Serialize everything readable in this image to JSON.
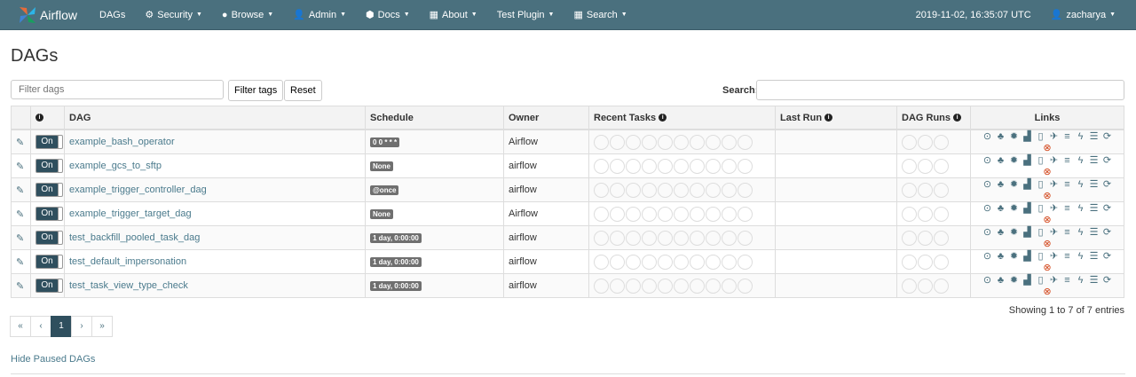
{
  "nav": {
    "brand": "Airflow",
    "items": [
      {
        "label": "DAGs",
        "icon": ""
      },
      {
        "label": "Security",
        "icon": "cogs-icon"
      },
      {
        "label": "Browse",
        "icon": "globe-icon"
      },
      {
        "label": "Admin",
        "icon": "user-icon"
      },
      {
        "label": "Docs",
        "icon": "cube-icon"
      },
      {
        "label": "About",
        "icon": "grid-icon"
      },
      {
        "label": "Test Plugin",
        "icon": ""
      },
      {
        "label": "Search",
        "icon": "grid-icon"
      }
    ],
    "time": "2019-11-02, 16:35:07 UTC",
    "user": "zacharya",
    "color": "#4a707e"
  },
  "page": {
    "title": "DAGs",
    "filter_placeholder": "Filter dags",
    "filter_tags": "Filter tags",
    "reset": "Reset",
    "search_label": "Search:"
  },
  "table": {
    "headers": [
      "",
      "",
      "DAG",
      "Schedule",
      "Owner",
      "Recent Tasks",
      "Last Run",
      "DAG Runs",
      "Links"
    ],
    "toggle_label": "On",
    "rows": [
      {
        "dag": "example_bash_operator",
        "schedule": "0 0 * * *",
        "owner": "Airflow"
      },
      {
        "dag": "example_gcs_to_sftp",
        "schedule": "None",
        "owner": "airflow"
      },
      {
        "dag": "example_trigger_controller_dag",
        "schedule": "@once",
        "owner": "airflow"
      },
      {
        "dag": "example_trigger_target_dag",
        "schedule": "None",
        "owner": "Airflow"
      },
      {
        "dag": "test_backfill_pooled_task_dag",
        "schedule": "1 day, 0:00:00",
        "owner": "airflow"
      },
      {
        "dag": "test_default_impersonation",
        "schedule": "1 day, 0:00:00",
        "owner": "airflow"
      },
      {
        "dag": "test_task_view_type_check",
        "schedule": "1 day, 0:00:00",
        "owner": "airflow"
      }
    ]
  },
  "footer": {
    "showing": "Showing 1 to 7 of 7 entries",
    "pages": [
      "«",
      "‹",
      "1",
      "›",
      "»"
    ],
    "active_page": "1",
    "hide_paused": "Hide Paused DAGs"
  }
}
